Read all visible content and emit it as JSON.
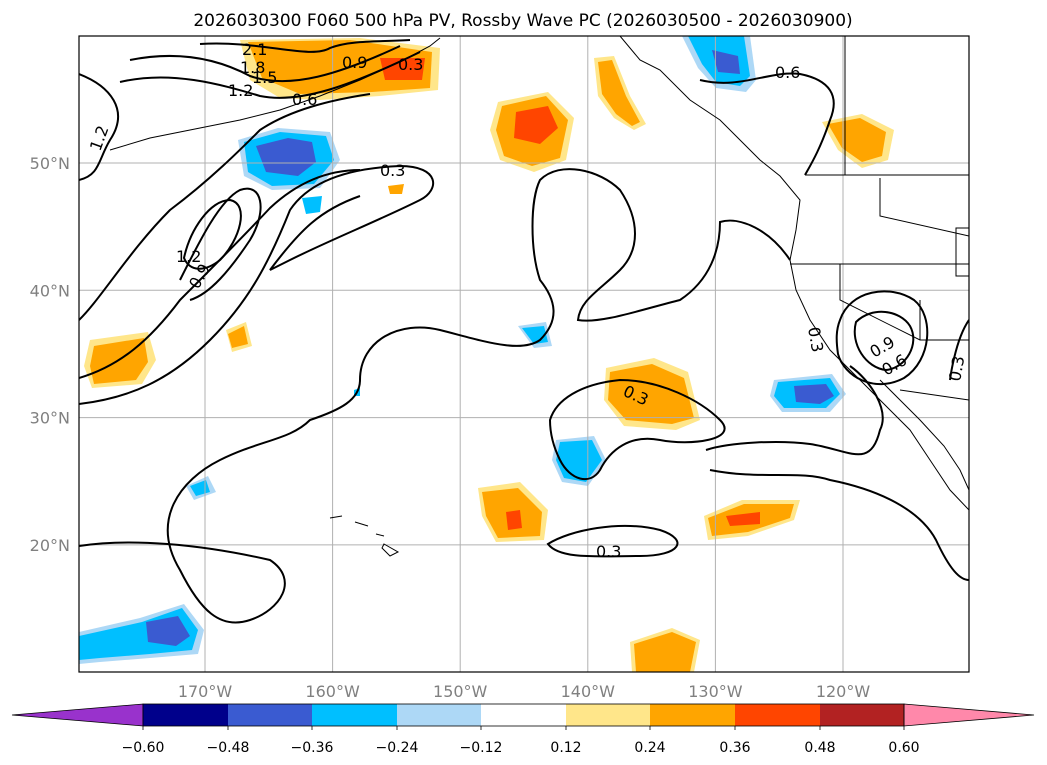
{
  "title": "2026030300 F060 500 hPa PV, Rossby Wave PC (2026030500 - 2026030900)",
  "map": {
    "lon_ticks": [
      {
        "value": -170,
        "label": "170°W"
      },
      {
        "value": -160,
        "label": "160°W"
      },
      {
        "value": -150,
        "label": "150°W"
      },
      {
        "value": -140,
        "label": "140°W"
      },
      {
        "value": -130,
        "label": "130°W"
      },
      {
        "value": -120,
        "label": "120°W"
      }
    ],
    "lat_ticks": [
      {
        "value": 20,
        "label": "20°N"
      },
      {
        "value": 30,
        "label": "30°N"
      },
      {
        "value": 40,
        "label": "40°N"
      },
      {
        "value": 50,
        "label": "50°N"
      }
    ],
    "contour_labels": [
      "2.1",
      "1.8",
      "1.5",
      "1.2",
      "0.9",
      "0.6",
      "0.3",
      "1.2",
      "0.9",
      "1.2",
      "0.3",
      "0.3",
      "0.3",
      "0.6",
      "0.3",
      "0.9",
      "0.6",
      "0.3"
    ]
  },
  "colorbar": {
    "ticks": [
      "−0.60",
      "−0.48",
      "−0.36",
      "−0.24",
      "−0.12",
      "0.12",
      "0.24",
      "0.36",
      "0.48",
      "0.60"
    ],
    "colors": [
      "#9932cc",
      "#00008b",
      "#3a5bd1",
      "#00bfff",
      "#add8f6",
      "#ffffff",
      "#ffe68a",
      "#ffa500",
      "#ff4500",
      "#b22222",
      "#ff88aa"
    ]
  },
  "colors": {
    "neg_light": "#add8f6",
    "neg_mid": "#00bfff",
    "neg_dark": "#3a5bd1",
    "pos_light": "#ffe68a",
    "pos_mid": "#ffa500",
    "pos_dark": "#ff4500",
    "grid": "#b0b0b0"
  }
}
